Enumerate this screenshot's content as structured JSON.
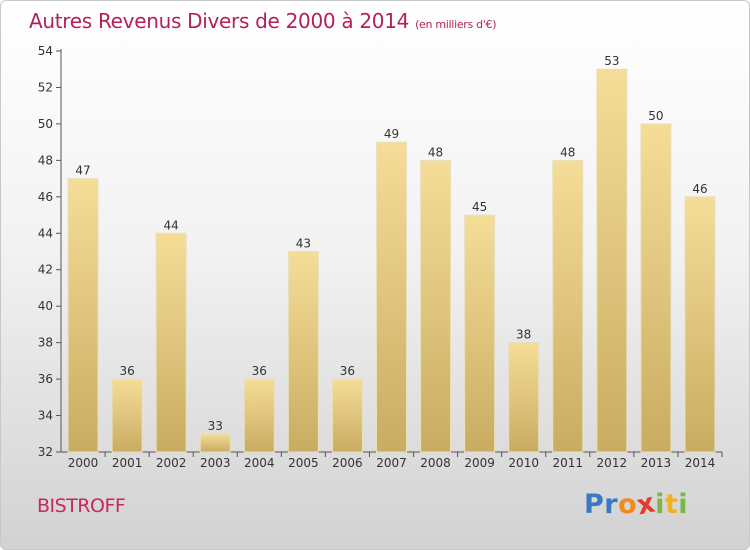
{
  "title": "Autres Revenus Divers de 2000 à 2014",
  "subtitle": "(en milliers d'€)",
  "commune": "BISTROFF",
  "logo": {
    "letters": [
      "P",
      "r",
      "o",
      "x",
      "i",
      "t",
      "i"
    ],
    "colors": [
      "#3b78c3",
      "#3b78c3",
      "#f08c1e",
      "#e53b2c",
      "#7ab648",
      "#f0b21e",
      "#7ab648"
    ]
  },
  "colors": {
    "bar_top": "#f5dd98",
    "bar_bottom": "#c9ac62",
    "title": "#b3205a",
    "commune": "#c8285e"
  },
  "chart_data": {
    "type": "bar",
    "title": "Autres Revenus Divers de 2000 à 2014",
    "subtitle": "(en milliers d'€)",
    "categories": [
      "2000",
      "2001",
      "2002",
      "2003",
      "2004",
      "2005",
      "2006",
      "2007",
      "2008",
      "2009",
      "2010",
      "2011",
      "2012",
      "2013",
      "2014"
    ],
    "values": [
      47,
      36,
      44,
      33,
      36,
      43,
      36,
      49,
      48,
      45,
      38,
      48,
      53,
      50,
      46
    ],
    "ylim": [
      32,
      54
    ],
    "yticks": [
      32,
      34,
      36,
      38,
      40,
      42,
      44,
      46,
      48,
      50,
      52,
      54
    ],
    "grid": false,
    "data_labels": true
  }
}
